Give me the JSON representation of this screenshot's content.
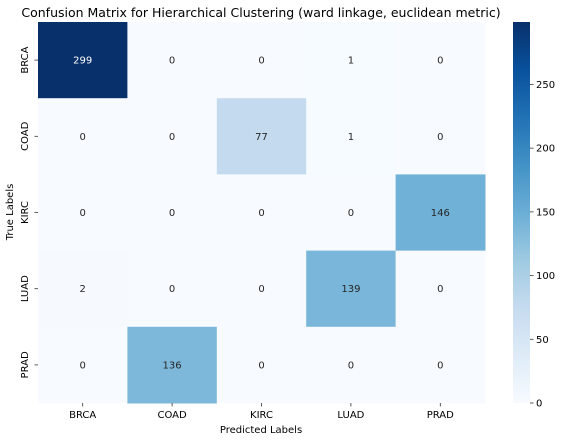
{
  "chart_data": {
    "type": "heatmap",
    "title": "Confusion Matrix for Hierarchical Clustering (ward linkage, euclidean metric)",
    "xlabel": "Predicted Labels",
    "ylabel": "True Labels",
    "x_categories": [
      "BRCA",
      "COAD",
      "KIRC",
      "LUAD",
      "PRAD"
    ],
    "y_categories": [
      "BRCA",
      "COAD",
      "KIRC",
      "LUAD",
      "PRAD"
    ],
    "matrix": [
      [
        299,
        0,
        0,
        1,
        0
      ],
      [
        0,
        0,
        77,
        1,
        0
      ],
      [
        0,
        0,
        0,
        0,
        146
      ],
      [
        2,
        0,
        0,
        139,
        0
      ],
      [
        0,
        136,
        0,
        0,
        0
      ]
    ],
    "colormap": "Blues",
    "vmin": 0,
    "vmax": 299,
    "colorbar_ticks": [
      0,
      50,
      100,
      150,
      200,
      250
    ],
    "annotations": true,
    "grid": false
  }
}
